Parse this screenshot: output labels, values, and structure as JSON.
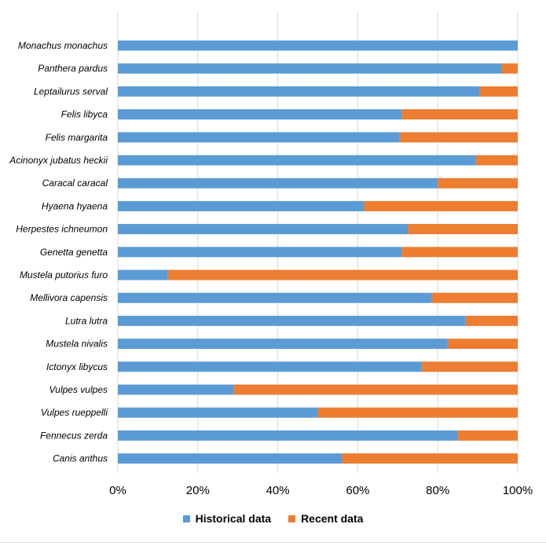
{
  "chart_data": {
    "type": "bar",
    "orientation": "horizontal",
    "stacked": "percent",
    "categories": [
      "Monachus monachus",
      "Panthera pardus",
      "Leptailurus serval",
      "Felis libyca",
      "Felis margarita",
      "Acinonyx jubatus heckii",
      "Caracal caracal",
      "Hyaena hyaena",
      "Herpestes ichneumon",
      "Genetta genetta",
      "Mustela putorius furo",
      "Mellivora capensis",
      "Lutra lutra",
      "Mustela nivalis",
      "Ictonyx libycus",
      "Vulpes vulpes",
      "Vulpes rueppelli",
      "Fennecus zerda",
      "Canis anthus"
    ],
    "series": [
      {
        "name": "Historical data",
        "color": "#5b9bd5",
        "values": [
          100,
          96,
          90.5,
          71,
          70.5,
          89.5,
          80,
          61.5,
          72.5,
          71,
          12.5,
          78.5,
          87,
          82.5,
          76,
          29,
          50,
          85,
          56
        ]
      },
      {
        "name": "Recent data",
        "color": "#ed7d31",
        "values": [
          0,
          4,
          9.5,
          29,
          29.5,
          10.5,
          20,
          38.5,
          27.5,
          29,
          87.5,
          21.5,
          13,
          17.5,
          24,
          71,
          50,
          15,
          44
        ]
      }
    ],
    "xlim": [
      0,
      100
    ],
    "x_ticks": [
      "0%",
      "20%",
      "40%",
      "60%",
      "80%",
      "100%"
    ],
    "grid": true,
    "legend_position": "bottom",
    "title": "",
    "xlabel": "",
    "ylabel": ""
  }
}
